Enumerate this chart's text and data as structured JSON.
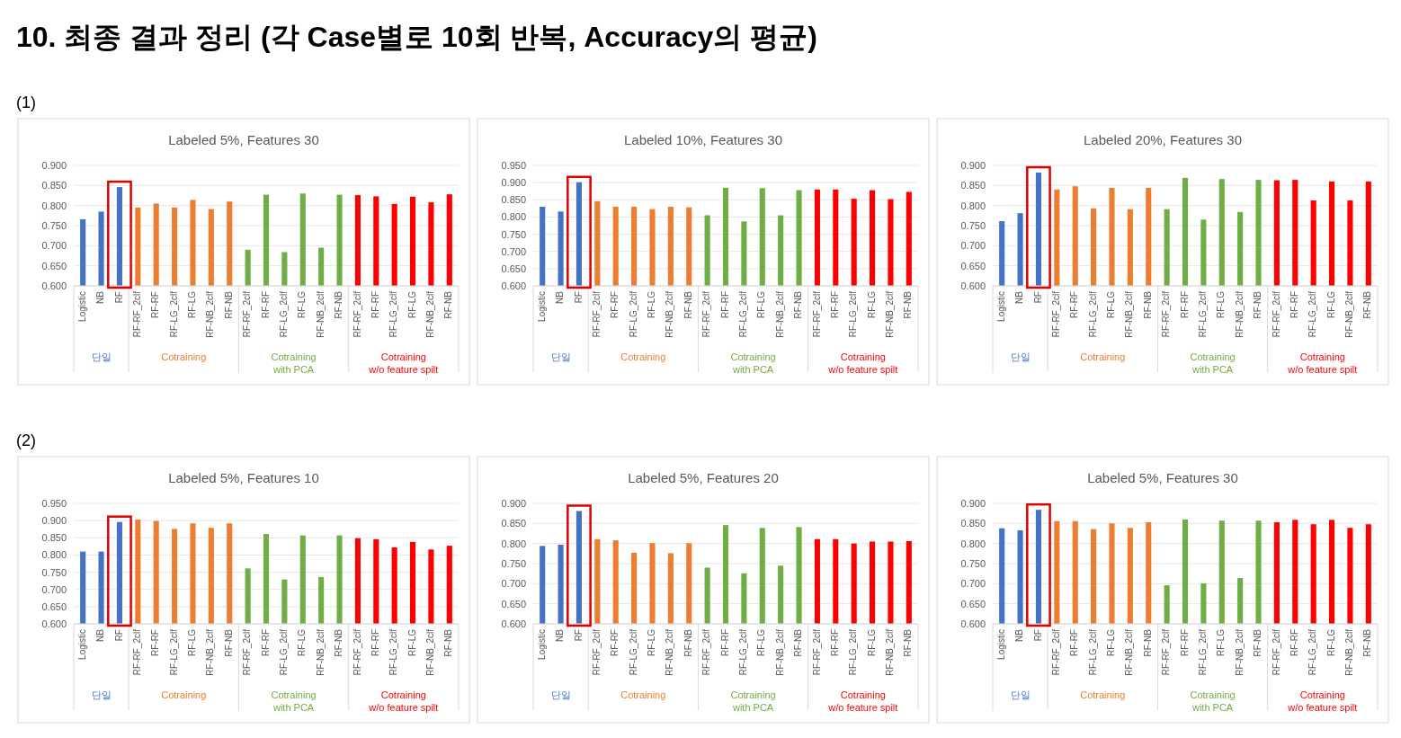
{
  "chart_data": [
    {
      "type": "bar",
      "title": "Labeled 5%, Features 30",
      "annotations": [
        "10. 최종 결과 정리 (각 Case별로 10회 반복, Accuracy의 평균)",
        "(1)"
      ],
      "categories": [
        "Logistic",
        "NB",
        "RF",
        "RF-RF_2clf",
        "RF-RF",
        "RF-LG_2clf",
        "RF-LG",
        "RF-NB_2clf",
        "RF-NB",
        "RF-RF_2clf",
        "RF-RF",
        "RF-LG_2clf",
        "RF-LG",
        "RF-NB_2clf",
        "RF-NB",
        "RF-RF_2clf",
        "RF-RF",
        "RF-LG_2clf",
        "RF-LG",
        "RF-NB_2clf",
        "RF-NB"
      ],
      "ylim": [
        0.6,
        0.9
      ],
      "yticks": [
        {
          "value": 0.6,
          "label": "0.600"
        },
        {
          "value": 0.65,
          "label": "0.650"
        },
        {
          "value": 0.7,
          "label": "0.700"
        },
        {
          "value": 0.75,
          "label": "0.750"
        },
        {
          "value": 0.8,
          "label": "0.800"
        },
        {
          "value": 0.85,
          "label": "0.850"
        },
        {
          "value": 0.9,
          "label": "0.900"
        }
      ],
      "grid": "y",
      "series": [
        {
          "name": "단일",
          "color": "#4472c4",
          "values": [
            0.766,
            0.785,
            0.846,
            null,
            null,
            null,
            null,
            null,
            null,
            null,
            null,
            null,
            null,
            null,
            null,
            null,
            null,
            null,
            null,
            null,
            null
          ]
        },
        {
          "name": "Cotraining",
          "color": "#ed7d31",
          "values": [
            null,
            null,
            null,
            0.795,
            0.805,
            0.795,
            0.814,
            0.791,
            0.81,
            null,
            null,
            null,
            null,
            null,
            null,
            null,
            null,
            null,
            null,
            null,
            null
          ]
        },
        {
          "name": "Cotraining\nwith PCA",
          "color": "#70ad47",
          "values": [
            null,
            null,
            null,
            null,
            null,
            null,
            null,
            null,
            null,
            0.69,
            0.827,
            0.684,
            0.83,
            0.695,
            0.827,
            null,
            null,
            null,
            null,
            null,
            null
          ]
        },
        {
          "name": "Cotraining\nw/o feature spilt",
          "color": "#ff0000",
          "values": [
            null,
            null,
            null,
            null,
            null,
            null,
            null,
            null,
            null,
            null,
            null,
            null,
            null,
            null,
            null,
            0.826,
            0.823,
            0.804,
            0.822,
            0.808,
            0.828
          ]
        }
      ]
    },
    {
      "type": "bar",
      "title": "Labeled 10%, Features 30",
      "categories": [
        "Logistic",
        "NB",
        "RF",
        "RF-RF_2clf",
        "RF-RF",
        "RF-LG_2clf",
        "RF-LG",
        "RF-NB_2clf",
        "RF-NB",
        "RF-RF_2clf",
        "RF-RF",
        "RF-LG_2clf",
        "RF-LG",
        "RF-NB_2clf",
        "RF-NB",
        "RF-RF_2clf",
        "RF-RF",
        "RF-LG_2clf",
        "RF-LG",
        "RF-NB_2clf",
        "RF-NB"
      ],
      "ylim": [
        0.6,
        0.95
      ],
      "yticks": [
        {
          "value": 0.6,
          "label": "0.600"
        },
        {
          "value": 0.65,
          "label": "0.650"
        },
        {
          "value": 0.7,
          "label": "0.700"
        },
        {
          "value": 0.75,
          "label": "0.750"
        },
        {
          "value": 0.8,
          "label": "0.800"
        },
        {
          "value": 0.85,
          "label": "0.850"
        },
        {
          "value": 0.9,
          "label": "0.900"
        },
        {
          "value": 0.95,
          "label": "0.950"
        }
      ],
      "grid": "y",
      "series": [
        {
          "name": "단일",
          "color": "#4472c4",
          "values": [
            0.83,
            0.816,
            0.901,
            null,
            null,
            null,
            null,
            null,
            null,
            null,
            null,
            null,
            null,
            null,
            null,
            null,
            null,
            null,
            null,
            null,
            null
          ]
        },
        {
          "name": "Cotraining",
          "color": "#ed7d31",
          "values": [
            null,
            null,
            null,
            0.846,
            0.83,
            0.83,
            0.823,
            0.83,
            0.828,
            null,
            null,
            null,
            null,
            null,
            null,
            null,
            null,
            null,
            null,
            null,
            null
          ]
        },
        {
          "name": "Cotraining\nwith PCA",
          "color": "#70ad47",
          "values": [
            null,
            null,
            null,
            null,
            null,
            null,
            null,
            null,
            null,
            0.805,
            0.885,
            0.787,
            0.884,
            0.805,
            0.878,
            null,
            null,
            null,
            null,
            null,
            null
          ]
        },
        {
          "name": "Cotraining\nw/o feature spilt",
          "color": "#ff0000",
          "values": [
            null,
            null,
            null,
            null,
            null,
            null,
            null,
            null,
            null,
            null,
            null,
            null,
            null,
            null,
            null,
            0.88,
            0.88,
            0.853,
            0.878,
            0.852,
            0.873
          ]
        }
      ]
    },
    {
      "type": "bar",
      "title": "Labeled 20%, Features 30",
      "categories": [
        "Logistic",
        "NB",
        "RF",
        "RF-RF_2clf",
        "RF-RF",
        "RF-LG_2clf",
        "RF-LG",
        "RF-NB_2clf",
        "RF-NB",
        "RF-RF_2clf",
        "RF-RF",
        "RF-LG_2clf",
        "RF-LG",
        "RF-NB_2clf",
        "RF-NB",
        "RF-RF_2clf",
        "RF-RF",
        "RF-LG_2clf",
        "RF-LG",
        "RF-NB_2clf",
        "RF-NB"
      ],
      "ylim": [
        0.6,
        0.9
      ],
      "yticks": [
        {
          "value": 0.6,
          "label": "0.600"
        },
        {
          "value": 0.65,
          "label": "0.650"
        },
        {
          "value": 0.7,
          "label": "0.700"
        },
        {
          "value": 0.75,
          "label": "0.750"
        },
        {
          "value": 0.8,
          "label": "0.800"
        },
        {
          "value": 0.85,
          "label": "0.850"
        },
        {
          "value": 0.9,
          "label": "0.900"
        }
      ],
      "grid": "y",
      "series": [
        {
          "name": "단일",
          "color": "#4472c4",
          "values": [
            0.761,
            0.781,
            0.882,
            null,
            null,
            null,
            null,
            null,
            null,
            null,
            null,
            null,
            null,
            null,
            null,
            null,
            null,
            null,
            null,
            null,
            null
          ]
        },
        {
          "name": "Cotraining",
          "color": "#ed7d31",
          "values": [
            null,
            null,
            null,
            0.84,
            0.848,
            0.793,
            0.844,
            0.791,
            0.844,
            null,
            null,
            null,
            null,
            null,
            null,
            null,
            null,
            null,
            null,
            null,
            null
          ]
        },
        {
          "name": "Cotraining\nwith PCA",
          "color": "#70ad47",
          "values": [
            null,
            null,
            null,
            null,
            null,
            null,
            null,
            null,
            null,
            0.791,
            0.869,
            0.765,
            0.866,
            0.784,
            0.864,
            null,
            null,
            null,
            null,
            null,
            null
          ]
        },
        {
          "name": "Cotraining\nw/o feature spilt",
          "color": "#ff0000",
          "values": [
            null,
            null,
            null,
            null,
            null,
            null,
            null,
            null,
            null,
            null,
            null,
            null,
            null,
            null,
            null,
            0.863,
            0.864,
            0.813,
            0.86,
            0.813,
            0.86
          ]
        }
      ]
    },
    {
      "type": "bar",
      "title": "Labeled 5%, Features 10",
      "annotations": [
        "(2)"
      ],
      "categories": [
        "Logistic",
        "NB",
        "RF",
        "RF-RF_2clf",
        "RF-RF",
        "RF-LG_2clf",
        "RF-LG",
        "RF-NB_2clf",
        "RF-NB",
        "RF-RF_2clf",
        "RF-RF",
        "RF-LG_2clf",
        "RF-LG",
        "RF-NB_2clf",
        "RF-NB",
        "RF-RF_2clf",
        "RF-RF",
        "RF-LG_2clf",
        "RF-LG",
        "RF-NB_2clf",
        "RF-NB"
      ],
      "ylim": [
        0.6,
        0.95
      ],
      "yticks": [
        {
          "value": 0.6,
          "label": "0.600"
        },
        {
          "value": 0.65,
          "label": "0.650"
        },
        {
          "value": 0.7,
          "label": "0.700"
        },
        {
          "value": 0.75,
          "label": "0.750"
        },
        {
          "value": 0.8,
          "label": "0.800"
        },
        {
          "value": 0.85,
          "label": "0.850"
        },
        {
          "value": 0.9,
          "label": "0.900"
        },
        {
          "value": 0.95,
          "label": "0.950"
        }
      ],
      "grid": "y",
      "series": [
        {
          "name": "단일",
          "color": "#4472c4",
          "values": [
            0.81,
            0.81,
            0.896,
            null,
            null,
            null,
            null,
            null,
            null,
            null,
            null,
            null,
            null,
            null,
            null,
            null,
            null,
            null,
            null,
            null,
            null
          ]
        },
        {
          "name": "Cotraining",
          "color": "#ed7d31",
          "values": [
            null,
            null,
            null,
            0.903,
            0.899,
            0.876,
            0.892,
            0.879,
            0.892,
            null,
            null,
            null,
            null,
            null,
            null,
            null,
            null,
            null,
            null,
            null,
            null
          ]
        },
        {
          "name": "Cotraining\nwith PCA",
          "color": "#70ad47",
          "values": [
            null,
            null,
            null,
            null,
            null,
            null,
            null,
            null,
            null,
            0.761,
            0.861,
            0.729,
            0.857,
            0.736,
            0.857,
            null,
            null,
            null,
            null,
            null,
            null
          ]
        },
        {
          "name": "Cotraining\nw/o feature spilt",
          "color": "#ff0000",
          "values": [
            null,
            null,
            null,
            null,
            null,
            null,
            null,
            null,
            null,
            null,
            null,
            null,
            null,
            null,
            null,
            0.849,
            0.846,
            0.822,
            0.838,
            0.816,
            0.827
          ]
        }
      ]
    },
    {
      "type": "bar",
      "title": "Labeled 5%, Features 20",
      "categories": [
        "Logistic",
        "NB",
        "RF",
        "RF-RF_2clf",
        "RF-RF",
        "RF-LG_2clf",
        "RF-LG",
        "RF-NB_2clf",
        "RF-NB",
        "RF-RF_2clf",
        "RF-RF",
        "RF-LG_2clf",
        "RF-LG",
        "RF-NB_2clf",
        "RF-NB",
        "RF-RF_2clf",
        "RF-RF",
        "RF-LG_2clf",
        "RF-LG",
        "RF-NB_2clf",
        "RF-NB"
      ],
      "ylim": [
        0.6,
        0.9
      ],
      "yticks": [
        {
          "value": 0.6,
          "label": "0.600"
        },
        {
          "value": 0.65,
          "label": "0.650"
        },
        {
          "value": 0.7,
          "label": "0.700"
        },
        {
          "value": 0.75,
          "label": "0.750"
        },
        {
          "value": 0.8,
          "label": "0.800"
        },
        {
          "value": 0.85,
          "label": "0.850"
        },
        {
          "value": 0.9,
          "label": "0.900"
        }
      ],
      "grid": "y",
      "series": [
        {
          "name": "단일",
          "color": "#4472c4",
          "values": [
            0.794,
            0.797,
            0.881,
            null,
            null,
            null,
            null,
            null,
            null,
            null,
            null,
            null,
            null,
            null,
            null,
            null,
            null,
            null,
            null,
            null,
            null
          ]
        },
        {
          "name": "Cotraining",
          "color": "#ed7d31",
          "values": [
            null,
            null,
            null,
            0.811,
            0.808,
            0.777,
            0.801,
            0.776,
            0.801,
            null,
            null,
            null,
            null,
            null,
            null,
            null,
            null,
            null,
            null,
            null,
            null
          ]
        },
        {
          "name": "Cotraining\nwith PCA",
          "color": "#70ad47",
          "values": [
            null,
            null,
            null,
            null,
            null,
            null,
            null,
            null,
            null,
            0.74,
            0.846,
            0.726,
            0.839,
            0.745,
            0.841,
            null,
            null,
            null,
            null,
            null,
            null
          ]
        },
        {
          "name": "Cotraining\nw/o feature spilt",
          "color": "#ff0000",
          "values": [
            null,
            null,
            null,
            null,
            null,
            null,
            null,
            null,
            null,
            null,
            null,
            null,
            null,
            null,
            null,
            0.811,
            0.811,
            0.8,
            0.805,
            0.805,
            0.806
          ]
        }
      ]
    },
    {
      "type": "bar",
      "title": "Labeled 5%, Features 30",
      "categories": [
        "Logistic",
        "NB",
        "RF",
        "RF-RF_2clf",
        "RF-RF",
        "RF-LG_2clf",
        "RF-LG",
        "RF-NB_2clf",
        "RF-NB",
        "RF-RF_2clf",
        "RF-RF",
        "RF-LG_2clf",
        "RF-LG",
        "RF-NB_2clf",
        "RF-NB",
        "RF-RF_2clf",
        "RF-RF",
        "RF-LG_2clf",
        "RF-LG",
        "RF-NB_2clf",
        "RF-NB"
      ],
      "ylim": [
        0.6,
        0.9
      ],
      "yticks": [
        {
          "value": 0.6,
          "label": "0.600"
        },
        {
          "value": 0.65,
          "label": "0.650"
        },
        {
          "value": 0.7,
          "label": "0.700"
        },
        {
          "value": 0.75,
          "label": "0.750"
        },
        {
          "value": 0.8,
          "label": "0.800"
        },
        {
          "value": 0.85,
          "label": "0.850"
        },
        {
          "value": 0.9,
          "label": "0.900"
        }
      ],
      "grid": "y",
      "series": [
        {
          "name": "단일",
          "color": "#4472c4",
          "values": [
            0.838,
            0.833,
            0.884,
            null,
            null,
            null,
            null,
            null,
            null,
            null,
            null,
            null,
            null,
            null,
            null,
            null,
            null,
            null,
            null,
            null,
            null
          ]
        },
        {
          "name": "Cotraining",
          "color": "#ed7d31",
          "values": [
            null,
            null,
            null,
            0.856,
            0.856,
            0.836,
            0.85,
            0.839,
            0.853,
            null,
            null,
            null,
            null,
            null,
            null,
            null,
            null,
            null,
            null,
            null,
            null
          ]
        },
        {
          "name": "Cotraining\nwith PCA",
          "color": "#70ad47",
          "values": [
            null,
            null,
            null,
            null,
            null,
            null,
            null,
            null,
            null,
            0.696,
            0.86,
            0.701,
            0.857,
            0.714,
            0.857,
            null,
            null,
            null,
            null,
            null,
            null
          ]
        },
        {
          "name": "Cotraining\nw/o feature spilt",
          "color": "#ff0000",
          "values": [
            null,
            null,
            null,
            null,
            null,
            null,
            null,
            null,
            null,
            null,
            null,
            null,
            null,
            null,
            null,
            0.853,
            0.859,
            0.848,
            0.859,
            0.839,
            0.848
          ]
        }
      ]
    }
  ]
}
